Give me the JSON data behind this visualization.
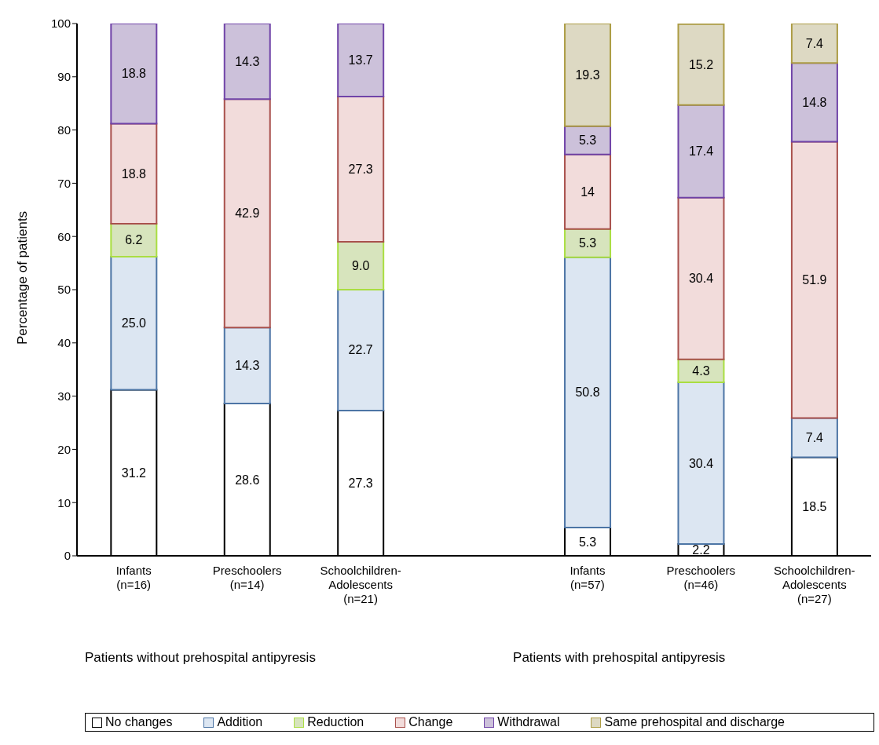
{
  "chart_data": {
    "type": "bar",
    "stacked": true,
    "ylabel": "Percentage of patients",
    "categories": [
      "Infants\n(n=16)",
      "Preschoolers\n(n=14)",
      "Schoolchildren-\nAdolescents\n(n=21)",
      null,
      "Infants\n(n=57)",
      "Preschoolers\n(n=46)",
      "Schoolchildren-\nAdolescents\n(n=27)"
    ],
    "series": [
      {
        "name": "No changes",
        "color": "#ffffff",
        "values": [
          31.2,
          28.6,
          27.3,
          null,
          5.3,
          2.2,
          18.5
        ],
        "value_labels": [
          "31.2",
          "28.6",
          "27.3",
          null,
          "5.3",
          "2.2",
          "18.5"
        ]
      },
      {
        "name": "Addition",
        "color": "#dce6f2",
        "values": [
          25.0,
          14.3,
          22.7,
          null,
          50.8,
          30.4,
          7.4
        ],
        "value_labels": [
          "25.0",
          "14.3",
          "22.7",
          null,
          "50.8",
          "30.4",
          "7.4"
        ]
      },
      {
        "name": "Reduction",
        "color": "#d7e4bd",
        "values": [
          6.2,
          null,
          9.0,
          null,
          5.3,
          4.3,
          null
        ],
        "value_labels": [
          "6.2",
          null,
          "9.0",
          null,
          "5.3",
          "4.3",
          null
        ]
      },
      {
        "name": "Change",
        "color": "#f2dcdb",
        "values": [
          18.8,
          42.9,
          27.3,
          null,
          14,
          30.4,
          51.9
        ],
        "value_labels": [
          "18.8",
          "42.9",
          "27.3",
          null,
          "14",
          "30.4",
          "51.9"
        ]
      },
      {
        "name": "Withdrawal",
        "color": "#ccc1da",
        "values": [
          18.8,
          14.3,
          13.7,
          null,
          5.3,
          17.4,
          14.8
        ],
        "value_labels": [
          "18.8",
          "14.3",
          "13.7",
          null,
          "5.3",
          "17.4",
          "14.8"
        ]
      },
      {
        "name": "Same prehospital and discharge",
        "color": "#ddd9c3",
        "values": [
          null,
          null,
          null,
          null,
          19.3,
          15.2,
          7.4
        ],
        "value_labels": [
          null,
          null,
          null,
          null,
          "19.3",
          "15.2",
          "7.4"
        ]
      }
    ],
    "ylim": [
      0,
      100
    ],
    "yticks": [
      0,
      10,
      20,
      30,
      40,
      50,
      60,
      70,
      80,
      90,
      100
    ],
    "grid": false,
    "legend": "bottom",
    "annotations": [
      "Patients without prehospital antipyresis",
      "Patients with prehospital antipyresis"
    ]
  }
}
